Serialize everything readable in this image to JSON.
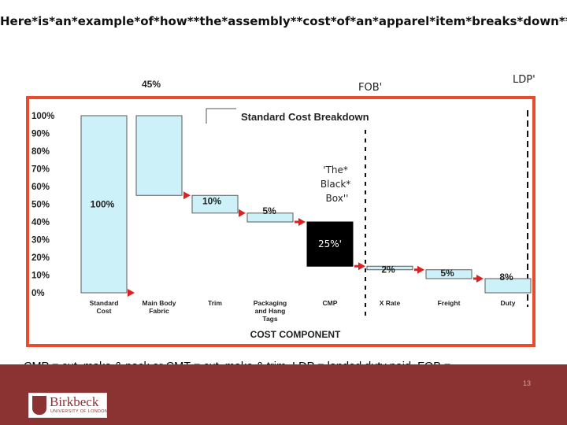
{
  "slide": {
    "title": "Here*is*an*example*of*how**the*assembly**cost*of*an*apparel*item*breaks*down**",
    "fob_marker": "FOB'",
    "ldp_marker": "LDP'",
    "footnote": "CMP = cut, make & pack or CMT = cut, make & trim,  LDP = landed duty paid, FOB =",
    "page_number": "13"
  },
  "logo": {
    "name": "Birkbeck",
    "sub": "UNIVERSITY OF LONDON"
  },
  "colors": {
    "bar_fill": "#ccf1f8",
    "bar_stroke": "#5a5a5a",
    "arrow": "#e02020",
    "frame": "#e84c2c",
    "footer": "#8b3233",
    "black_box": "#000000"
  },
  "chart_data": {
    "type": "bar",
    "subtype": "waterfall",
    "title": "Standard Cost Breakdown",
    "xlabel": "COST COMPONENT",
    "ylabel": "",
    "ylim": [
      0,
      100
    ],
    "yticks": [
      "0%",
      "10%",
      "20%",
      "30%",
      "40%",
      "50%",
      "60%",
      "70%",
      "80%",
      "90%",
      "100%"
    ],
    "categories": [
      "Standard Cost",
      "Main Body Fabric",
      "Trim",
      "Packaging and Hang Tags",
      "CMP",
      "X Rate",
      "Freight",
      "Duty"
    ],
    "segments": [
      {
        "category": "Standard Cost",
        "bottom": 0,
        "top": 100,
        "label": "100%"
      },
      {
        "category": "Main Body Fabric",
        "bottom": 55,
        "top": 100,
        "label": "45%"
      },
      {
        "category": "Trim",
        "bottom": 45,
        "top": 55,
        "label": "10%"
      },
      {
        "category": "Packaging and Hang Tags",
        "bottom": 40,
        "top": 45,
        "label": "5%"
      },
      {
        "category": "CMP",
        "bottom": 15,
        "top": 40,
        "label": "25%'"
      },
      {
        "category": "X Rate",
        "bottom": 13,
        "top": 15,
        "label": "2%"
      },
      {
        "category": "Freight",
        "bottom": 8,
        "top": 13,
        "label": "5%"
      },
      {
        "category": "Duty",
        "bottom": 0,
        "top": 8,
        "label": "8%"
      }
    ],
    "annotation": "'The* Black* Box''",
    "grid": false,
    "legend": "none"
  }
}
